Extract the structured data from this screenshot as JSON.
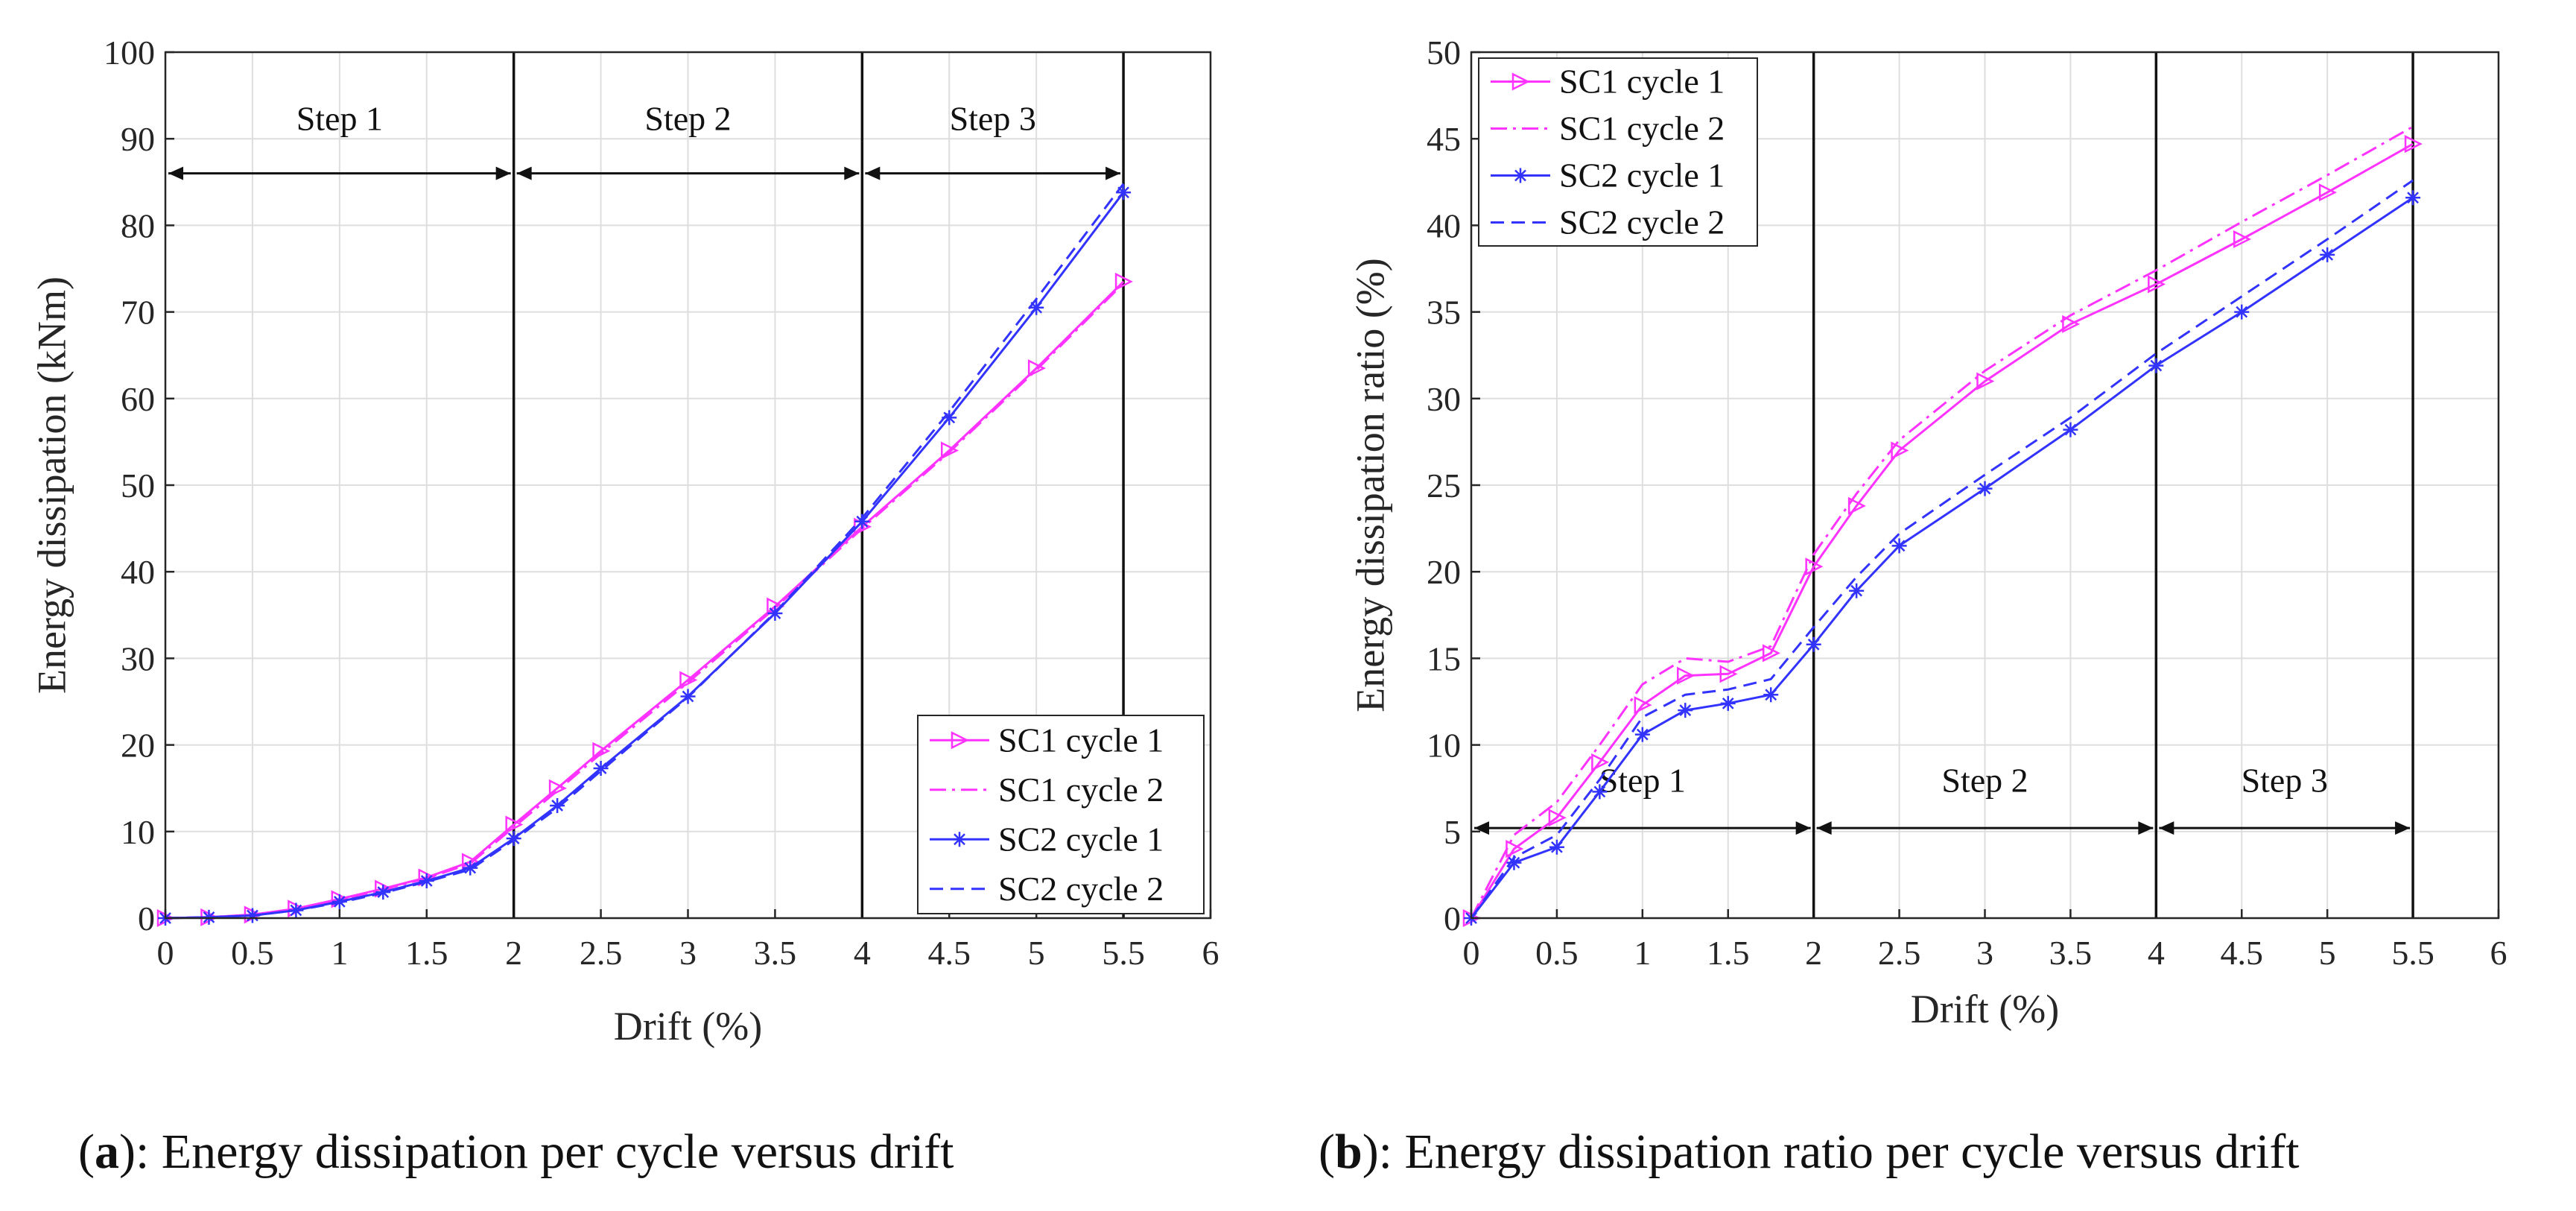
{
  "chart_data": [
    {
      "type": "line",
      "id": "a",
      "title": "",
      "xlabel": "Drift (%)",
      "ylabel": "Energy dissipation (kNm)",
      "xlim": [
        0,
        6
      ],
      "ylim": [
        0,
        100
      ],
      "xticks": [
        "0",
        "0.5",
        "1",
        "1.5",
        "2",
        "2.5",
        "3",
        "3.5",
        "4",
        "4.5",
        "5",
        "5.5",
        "6"
      ],
      "yticks": [
        "0",
        "10",
        "20",
        "30",
        "40",
        "50",
        "60",
        "70",
        "80",
        "90",
        "100"
      ],
      "grid": true,
      "legend_position": "bottom-right",
      "step_lines": [
        2,
        4,
        5.5
      ],
      "steps": [
        {
          "label": "Step 1",
          "from": 0,
          "to": 2
        },
        {
          "label": "Step 2",
          "from": 2,
          "to": 4
        },
        {
          "label": "Step 3",
          "from": 4,
          "to": 5.5
        }
      ],
      "step_arrow_y": 86,
      "step_label_y": 91,
      "x": [
        0,
        0.25,
        0.5,
        0.75,
        1,
        1.25,
        1.5,
        1.75,
        2,
        2.25,
        2.5,
        3,
        3.5,
        4,
        4.5,
        5,
        5.5
      ],
      "series": [
        {
          "name": "SC1 cycle 1",
          "color": "#ff33ff",
          "dash": "solid",
          "marker": "triangle-right",
          "values": [
            0,
            0.1,
            0.4,
            1.1,
            2.2,
            3.4,
            4.7,
            6.5,
            10.8,
            15.0,
            19.3,
            27.5,
            36.0,
            45.2,
            54.0,
            63.5,
            73.5
          ]
        },
        {
          "name": "SC1 cycle 2",
          "color": "#ff33ff",
          "dash": "dashdot",
          "marker": "none",
          "values": [
            0,
            0.1,
            0.4,
            1.0,
            2.1,
            3.3,
            4.6,
            6.3,
            10.5,
            14.7,
            19.0,
            27.2,
            35.8,
            45.0,
            53.8,
            63.3,
            73.3
          ]
        },
        {
          "name": "SC2 cycle 1",
          "color": "#3333ff",
          "dash": "solid",
          "marker": "asterisk",
          "values": [
            0,
            0.1,
            0.3,
            0.9,
            1.9,
            3.0,
            4.3,
            5.8,
            9.2,
            13.0,
            17.3,
            25.6,
            35.2,
            45.8,
            57.8,
            70.5,
            83.8
          ]
        },
        {
          "name": "SC2 cycle 2",
          "color": "#3333ff",
          "dash": "dash",
          "marker": "none",
          "values": [
            0,
            0.1,
            0.3,
            0.9,
            1.8,
            2.9,
            4.2,
            5.6,
            9.0,
            12.7,
            17.0,
            25.5,
            35.3,
            46.2,
            58.5,
            71.5,
            84.8
          ]
        }
      ],
      "caption_bold": "a",
      "caption_rest": "): Energy dissipation per cycle versus drift"
    },
    {
      "type": "line",
      "id": "b",
      "title": "",
      "xlabel": "Drift (%)",
      "ylabel": "Energy dissipation ratio (%)",
      "xlim": [
        0,
        6
      ],
      "ylim": [
        0,
        50
      ],
      "xticks": [
        "0",
        "0.5",
        "1",
        "1.5",
        "2",
        "2.5",
        "3",
        "3.5",
        "4",
        "4.5",
        "5",
        "5.5",
        "6"
      ],
      "yticks": [
        "0",
        "5",
        "10",
        "15",
        "20",
        "25",
        "30",
        "35",
        "40",
        "45",
        "50"
      ],
      "grid": true,
      "legend_position": "top-left",
      "step_lines": [
        2,
        4,
        5.5
      ],
      "steps": [
        {
          "label": "Step 1",
          "from": 0,
          "to": 2
        },
        {
          "label": "Step 2",
          "from": 2,
          "to": 4
        },
        {
          "label": "Step 3",
          "from": 4,
          "to": 5.5
        }
      ],
      "step_arrow_y": 5.2,
      "step_label_y": 7.3,
      "x": [
        0,
        0.25,
        0.5,
        0.75,
        1,
        1.25,
        1.5,
        1.75,
        2,
        2.25,
        2.5,
        3,
        3.5,
        4,
        4.5,
        5,
        5.5
      ],
      "series": [
        {
          "name": "SC1 cycle 1",
          "color": "#ff33ff",
          "dash": "solid",
          "marker": "triangle-right",
          "values": [
            0,
            4.0,
            5.8,
            9.0,
            12.3,
            14.0,
            14.1,
            15.3,
            20.3,
            23.8,
            27.0,
            31.0,
            34.3,
            36.6,
            39.2,
            41.9,
            44.7
          ]
        },
        {
          "name": "SC1 cycle 2",
          "color": "#ff33ff",
          "dash": "dashdot",
          "marker": "none",
          "values": [
            0,
            4.8,
            6.7,
            10.0,
            13.5,
            15.0,
            14.8,
            15.7,
            21.0,
            24.5,
            27.6,
            31.6,
            34.8,
            37.4,
            40.2,
            42.9,
            45.7
          ]
        },
        {
          "name": "SC2 cycle 1",
          "color": "#3333ff",
          "dash": "solid",
          "marker": "asterisk",
          "values": [
            0,
            3.2,
            4.1,
            7.3,
            10.6,
            12.0,
            12.4,
            12.9,
            15.8,
            18.9,
            21.5,
            24.8,
            28.2,
            31.9,
            35.0,
            38.3,
            41.6
          ]
        },
        {
          "name": "SC2 cycle 2",
          "color": "#3333ff",
          "dash": "dash",
          "marker": "none",
          "values": [
            0,
            3.5,
            4.8,
            8.0,
            11.6,
            12.9,
            13.2,
            13.8,
            16.8,
            19.7,
            22.2,
            25.6,
            28.9,
            32.6,
            35.9,
            39.2,
            42.6
          ]
        }
      ],
      "caption_bold": "b",
      "caption_rest": "): Energy dissipation ratio per cycle versus drift"
    }
  ]
}
